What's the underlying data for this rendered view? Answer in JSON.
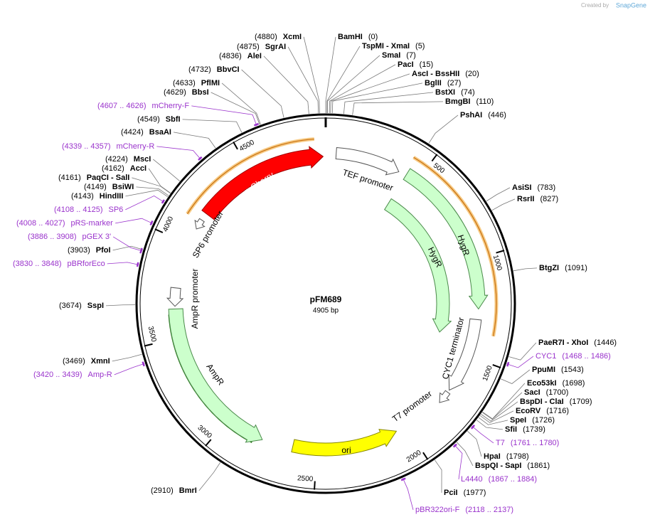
{
  "header": {
    "created_by": "Created by",
    "brand": "SnapGene"
  },
  "map": {
    "name": "pFM689",
    "size": "4905 bp",
    "ticks": [
      "500",
      "1000",
      "1500",
      "2000",
      "2500",
      "3000",
      "3500",
      "4000",
      "4500"
    ]
  },
  "features": [
    {
      "label": "mCherry"
    },
    {
      "label": "TEF promoter"
    },
    {
      "label": "HygR"
    },
    {
      "label": "HygR"
    },
    {
      "label": "CYC1 terminator"
    },
    {
      "label": "T7 promoter"
    },
    {
      "label": "ori"
    },
    {
      "label": "AmpR"
    },
    {
      "label": "AmpR promoter"
    },
    {
      "label": "SP6 promoter"
    }
  ],
  "sites": [
    {
      "name": "XcmI",
      "position": "(4880)"
    },
    {
      "name": "SgrAI",
      "position": "(4875)"
    },
    {
      "name": "AleI",
      "position": "(4836)"
    },
    {
      "name": "BbvCI",
      "position": "(4732)"
    },
    {
      "name": "PflMI",
      "position": "(4633)"
    },
    {
      "name": "BbsI",
      "position": "(4629)"
    },
    {
      "name": "SbfI",
      "position": "(4549)"
    },
    {
      "name": "BsaAI",
      "position": "(4424)"
    },
    {
      "name": "MscI",
      "position": "(4224)"
    },
    {
      "name": "AccI",
      "position": "(4162)"
    },
    {
      "name": "PaqCI  - SalI",
      "position": "(4161)"
    },
    {
      "name": "BsiWI",
      "position": "(4149)"
    },
    {
      "name": "HindIII",
      "position": "(4143)"
    },
    {
      "name": "PfoI",
      "position": "(3903)"
    },
    {
      "name": "SspI",
      "position": "(3674)"
    },
    {
      "name": "XmnI",
      "position": "(3469)"
    },
    {
      "name": "BmrI",
      "position": "(2910)"
    },
    {
      "name": "BamHI",
      "position": "(0)"
    },
    {
      "name": "TspMI  - XmaI",
      "position": "(5)"
    },
    {
      "name": "SmaI",
      "position": "(7)"
    },
    {
      "name": "PacI",
      "position": "(15)"
    },
    {
      "name": "AscI  - BssHII",
      "position": "(20)"
    },
    {
      "name": "BglII",
      "position": "(27)"
    },
    {
      "name": "BstXI",
      "position": "(74)"
    },
    {
      "name": "BmgBI",
      "position": "(110)"
    },
    {
      "name": "PshAI",
      "position": "(446)"
    },
    {
      "name": "AsiSI",
      "position": "(783)"
    },
    {
      "name": "RsrII",
      "position": "(827)"
    },
    {
      "name": "BtgZI",
      "position": "(1091)"
    },
    {
      "name": "PaeR7I  - XhoI",
      "position": "(1446)"
    },
    {
      "name": "PpuMI",
      "position": "(1543)"
    },
    {
      "name": "Eco53kI",
      "position": "(1698)"
    },
    {
      "name": "SacI",
      "position": "(1700)"
    },
    {
      "name": "BspDI  - ClaI",
      "position": "(1709)"
    },
    {
      "name": "EcoRV",
      "position": "(1716)"
    },
    {
      "name": "SpeI",
      "position": "(1726)"
    },
    {
      "name": "SfiI",
      "position": "(1739)"
    },
    {
      "name": "HpaI",
      "position": "(1798)"
    },
    {
      "name": "BspQI  - SapI",
      "position": "(1861)"
    },
    {
      "name": "PciI",
      "position": "(1977)"
    }
  ],
  "primers": [
    {
      "name": "mCherry-F",
      "range": "(4607 .. 4626)"
    },
    {
      "name": "mCherry-R",
      "range": "(4339 .. 4357)"
    },
    {
      "name": "SP6",
      "range": "(4108 .. 4125)"
    },
    {
      "name": "pRS-marker",
      "range": "(4008 .. 4027)"
    },
    {
      "name": "pGEX 3'",
      "range": "(3886 .. 3908)"
    },
    {
      "name": "pBRforEco",
      "range": "(3830 .. 3848)"
    },
    {
      "name": "Amp-R",
      "range": "(3420 .. 3439)"
    },
    {
      "name": "CYC1",
      "range": "(1468 .. 1486)"
    },
    {
      "name": "T7",
      "range": "(1761 .. 1780)"
    },
    {
      "name": "L4440",
      "range": "(1867 .. 1884)"
    },
    {
      "name": "pBR322ori-F",
      "range": "(2118 .. 2137)"
    }
  ]
}
